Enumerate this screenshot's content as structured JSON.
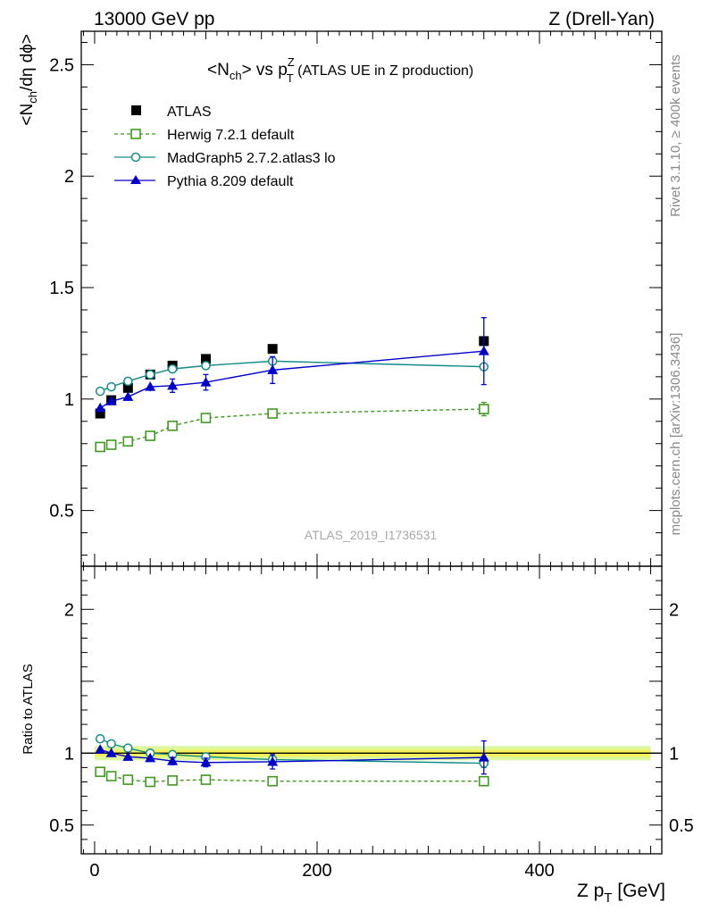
{
  "header": {
    "left": "13000 GeV pp",
    "right": "Z (Drell-Yan)"
  },
  "plot_title": {
    "main": "<N",
    "main_sub": "ch",
    "mid": "> vs p",
    "mid_sup": "Z",
    "mid_sub": "T",
    "tail": " (ATLAS UE in Z production)"
  },
  "side_text": {
    "right_top": "Rivet 3.1.10, ≥ 400k events",
    "right_bottom": "mcplots.cern.ch [arXiv:1306.3436]",
    "watermark": "ATLAS_2019_I1736531"
  },
  "axis_labels": {
    "y_main_a": "<N",
    "y_main_sub": "ch",
    "y_main_b": "/dη dϕ>",
    "y_ratio": "Ratio to ATLAS",
    "x_a": "Z p",
    "x_sub": "T",
    "x_b": " [GeV]"
  },
  "colors": {
    "atlas": "#000000",
    "herwig": "#3f9a1f",
    "madgraph": "#138a8a",
    "pythia": "#0000cc",
    "band_inner": "#f4f25a",
    "band_outer": "#ddf7a0"
  },
  "legend": [
    {
      "key": "atlas",
      "label": "ATLAS"
    },
    {
      "key": "herwig",
      "label": "Herwig 7.2.1 default"
    },
    {
      "key": "madgraph",
      "label": "MadGraph5 2.7.2.atlas3 lo"
    },
    {
      "key": "pythia",
      "label": "Pythia 8.209 default"
    }
  ],
  "chart_data": [
    {
      "type": "scatter",
      "panel": "main",
      "xlim": [
        -12,
        510
      ],
      "ylim": [
        0.25,
        2.65
      ],
      "x_ticks": [
        0,
        200,
        400
      ],
      "y_ticks": [
        0.5,
        1,
        1.5,
        2,
        2.5
      ],
      "y_tick_labels": [
        "0.5",
        "1",
        "1.5",
        "2",
        "2.5"
      ],
      "x": [
        5,
        15,
        30,
        50,
        70,
        100,
        160,
        350
      ],
      "series": [
        {
          "name": "ATLAS",
          "key": "atlas",
          "marker": "square-filled",
          "values": [
            0.935,
            0.995,
            1.05,
            1.11,
            1.15,
            1.18,
            1.225,
            1.26
          ],
          "err": [
            0,
            0,
            0,
            0,
            0,
            0,
            0,
            0
          ]
        },
        {
          "name": "Herwig 7.2.1 default",
          "key": "herwig",
          "marker": "square-open",
          "line": "dashed",
          "values": [
            0.785,
            0.795,
            0.81,
            0.835,
            0.88,
            0.915,
            0.935,
            0.955
          ],
          "err": [
            0.01,
            0.01,
            0.01,
            0.01,
            0.012,
            0.015,
            0.015,
            0.03
          ]
        },
        {
          "name": "MadGraph5 2.7.2.atlas3 lo",
          "key": "madgraph",
          "marker": "circle-open",
          "line": "solid",
          "values": [
            1.035,
            1.055,
            1.08,
            1.11,
            1.135,
            1.15,
            1.17,
            1.145
          ],
          "err": [
            0.005,
            0.005,
            0.005,
            0.005,
            0.005,
            0.005,
            0.005,
            0.005
          ]
        },
        {
          "name": "Pythia 8.209 default",
          "key": "pythia",
          "marker": "triangle-filled",
          "line": "solid",
          "values": [
            0.96,
            0.99,
            1.01,
            1.055,
            1.06,
            1.075,
            1.13,
            1.215
          ],
          "err": [
            0.012,
            0.012,
            0.015,
            0.02,
            0.03,
            0.035,
            0.06,
            0.15
          ]
        }
      ]
    },
    {
      "type": "scatter",
      "panel": "ratio",
      "xlim": [
        -12,
        510
      ],
      "ylim": [
        0.3,
        2.3
      ],
      "x_ticks": [
        0,
        200,
        400
      ],
      "x_tick_labels": [
        "0",
        "200",
        "400"
      ],
      "y_ticks": [
        0.5,
        1,
        2
      ],
      "y_tick_labels": [
        "0.5",
        "1",
        "2"
      ],
      "band": {
        "inner": 0.025,
        "outer": 0.05
      },
      "x": [
        5,
        15,
        30,
        50,
        70,
        100,
        160,
        350
      ],
      "series": [
        {
          "name": "Herwig 7.2.1 default",
          "key": "herwig",
          "marker": "square-open",
          "line": "dashed",
          "values": [
            0.87,
            0.84,
            0.815,
            0.8,
            0.81,
            0.815,
            0.805,
            0.805
          ],
          "err": [
            0.01,
            0.01,
            0.01,
            0.01,
            0.01,
            0.012,
            0.012,
            0.02
          ]
        },
        {
          "name": "MadGraph5 2.7.2.atlas3 lo",
          "key": "madgraph",
          "marker": "circle-open",
          "line": "solid",
          "values": [
            1.1,
            1.065,
            1.035,
            1.0,
            0.99,
            0.975,
            0.955,
            0.93
          ],
          "err": [
            0.005,
            0.005,
            0.005,
            0.005,
            0.005,
            0.005,
            0.005,
            0.03
          ]
        },
        {
          "name": "Pythia 8.209 default",
          "key": "pythia",
          "marker": "triangle-filled",
          "line": "solid",
          "values": [
            1.025,
            1.0,
            0.975,
            0.965,
            0.945,
            0.935,
            0.94,
            0.97
          ],
          "err": [
            0.012,
            0.012,
            0.014,
            0.018,
            0.025,
            0.03,
            0.05,
            0.115
          ]
        }
      ]
    }
  ]
}
